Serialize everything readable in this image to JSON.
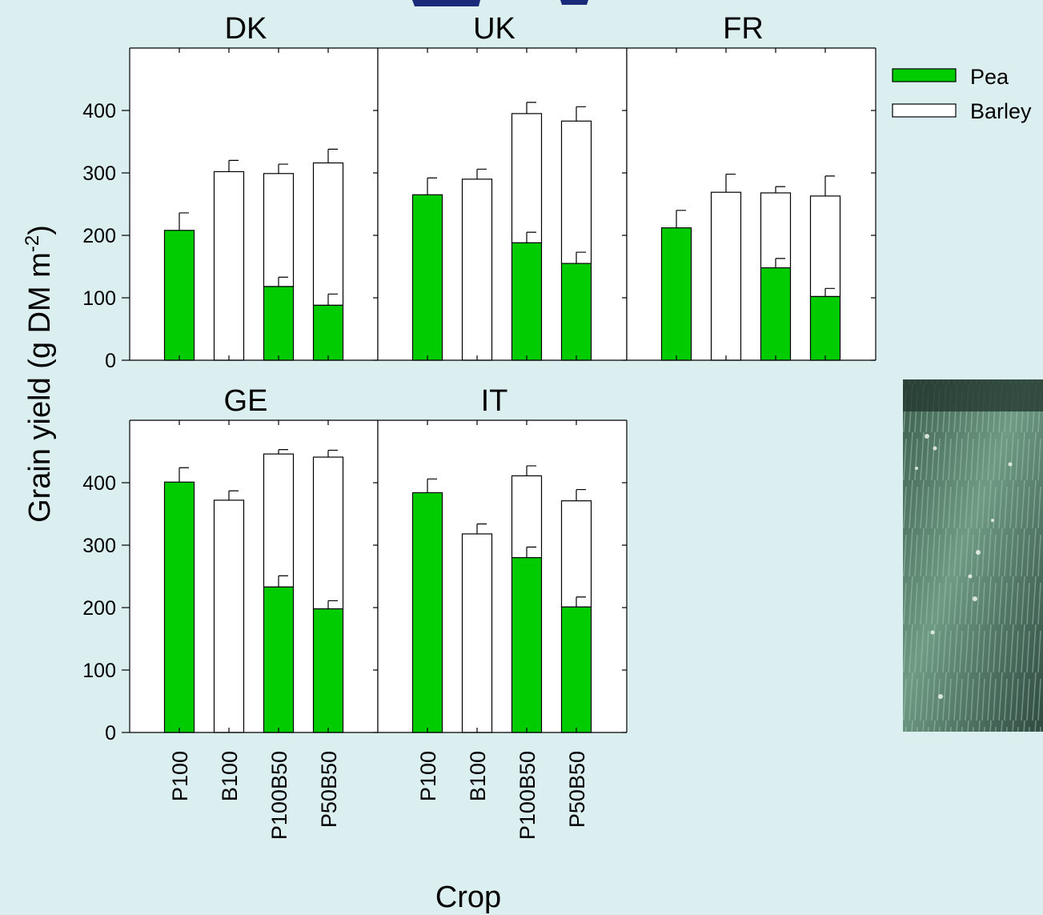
{
  "chart_data": {
    "type": "bar",
    "stacked": true,
    "ylabel": "Grain yield (g DM m",
    "ylabel_sup": "-2",
    "ylabel_close": ")",
    "xlabel": "Crop",
    "ylim": [
      0,
      500
    ],
    "yticks": [
      0,
      100,
      200,
      300,
      400
    ],
    "categories": [
      "P100",
      "B100",
      "P100B50",
      "P50B50"
    ],
    "legend": {
      "position": "top-right",
      "entries": [
        {
          "name": "Pea",
          "color": "#00cc00"
        },
        {
          "name": "Barley",
          "color": "#ffffff"
        }
      ]
    },
    "colors": {
      "pea": "#00cc00",
      "barley": "#ffffff",
      "background": "#dbeef0"
    },
    "panels": [
      {
        "title": "DK",
        "pea": [
          208,
          0,
          118,
          88
        ],
        "barley": [
          0,
          302,
          181,
          228
        ],
        "pea_err": [
          28,
          0,
          15,
          18
        ],
        "total_err": [
          0,
          18,
          15,
          22
        ]
      },
      {
        "title": "UK",
        "pea": [
          265,
          0,
          188,
          155
        ],
        "barley": [
          0,
          290,
          207,
          228
        ],
        "pea_err": [
          27,
          0,
          17,
          18
        ],
        "total_err": [
          0,
          16,
          18,
          23
        ]
      },
      {
        "title": "FR",
        "pea": [
          212,
          0,
          148,
          102
        ],
        "barley": [
          0,
          269,
          120,
          161
        ],
        "pea_err": [
          28,
          0,
          15,
          13
        ],
        "total_err": [
          0,
          29,
          10,
          32
        ]
      },
      {
        "title": "GE",
        "pea": [
          401,
          0,
          233,
          198
        ],
        "barley": [
          0,
          372,
          213,
          243
        ],
        "pea_err": [
          23,
          0,
          18,
          13
        ],
        "total_err": [
          0,
          15,
          7,
          11
        ]
      },
      {
        "title": "IT",
        "pea": [
          384,
          0,
          280,
          201
        ],
        "barley": [
          0,
          318,
          131,
          170
        ],
        "pea_err": [
          22,
          0,
          17,
          16
        ],
        "total_err": [
          0,
          16,
          16,
          18
        ]
      }
    ]
  },
  "photo": {
    "name": "field-photo"
  }
}
